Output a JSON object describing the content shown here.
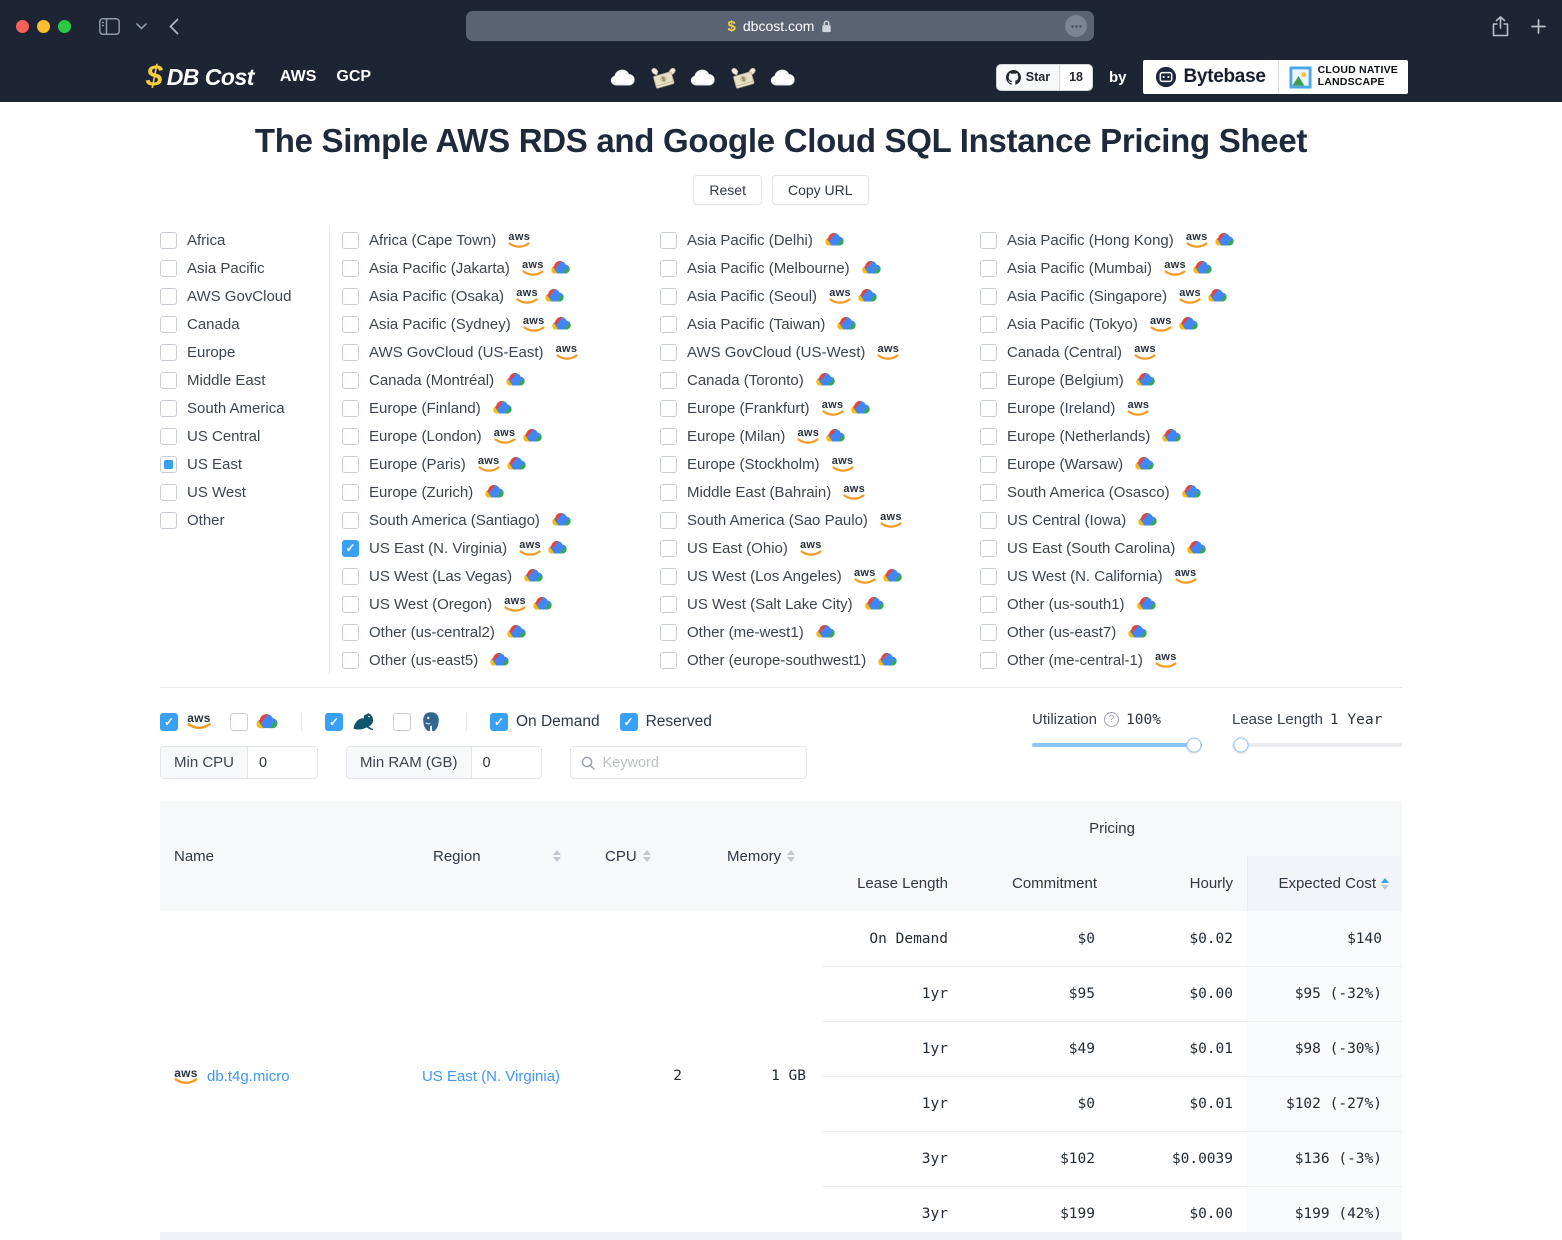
{
  "browser": {
    "url": "dbcost.com"
  },
  "site_header": {
    "logo_dollar": "$",
    "logo_text": "DB Cost",
    "nav": [
      {
        "label": "AWS"
      },
      {
        "label": "GCP"
      }
    ],
    "star_label": "Star",
    "star_count": "18",
    "by_label": "by",
    "bytebase_label": "Bytebase",
    "landscape_line1": "CLOUD NATIVE",
    "landscape_line2": "LANDSCAPE"
  },
  "page": {
    "title": "The Simple AWS RDS and Google Cloud SQL Instance Pricing Sheet",
    "reset_label": "Reset",
    "copy_url_label": "Copy URL"
  },
  "region_filter": {
    "groups": [
      {
        "label": "Africa",
        "state": "unchecked"
      },
      {
        "label": "Asia Pacific",
        "state": "unchecked"
      },
      {
        "label": "AWS GovCloud",
        "state": "unchecked"
      },
      {
        "label": "Canada",
        "state": "unchecked"
      },
      {
        "label": "Europe",
        "state": "unchecked"
      },
      {
        "label": "Middle East",
        "state": "unchecked"
      },
      {
        "label": "South America",
        "state": "unchecked"
      },
      {
        "label": "US Central",
        "state": "unchecked"
      },
      {
        "label": "US East",
        "state": "indeterminate"
      },
      {
        "label": "US West",
        "state": "unchecked"
      },
      {
        "label": "Other",
        "state": "unchecked"
      }
    ],
    "columns": [
      [
        {
          "label": "Africa (Cape Town)",
          "providers": [
            "aws"
          ],
          "checked": false
        },
        {
          "label": "Asia Pacific (Jakarta)",
          "providers": [
            "aws",
            "gcp"
          ],
          "checked": false
        },
        {
          "label": "Asia Pacific (Osaka)",
          "providers": [
            "aws",
            "gcp"
          ],
          "checked": false
        },
        {
          "label": "Asia Pacific (Sydney)",
          "providers": [
            "aws",
            "gcp"
          ],
          "checked": false
        },
        {
          "label": "AWS GovCloud (US-East)",
          "providers": [
            "aws"
          ],
          "checked": false
        },
        {
          "label": "Canada (Montréal)",
          "providers": [
            "gcp"
          ],
          "checked": false
        },
        {
          "label": "Europe (Finland)",
          "providers": [
            "gcp"
          ],
          "checked": false
        },
        {
          "label": "Europe (London)",
          "providers": [
            "aws",
            "gcp"
          ],
          "checked": false
        },
        {
          "label": "Europe (Paris)",
          "providers": [
            "aws",
            "gcp"
          ],
          "checked": false
        },
        {
          "label": "Europe (Zurich)",
          "providers": [
            "gcp"
          ],
          "checked": false
        },
        {
          "label": "South America (Santiago)",
          "providers": [
            "gcp"
          ],
          "checked": false
        },
        {
          "label": "US East (N. Virginia)",
          "providers": [
            "aws",
            "gcp"
          ],
          "checked": true
        },
        {
          "label": "US West (Las Vegas)",
          "providers": [
            "gcp"
          ],
          "checked": false
        },
        {
          "label": "US West (Oregon)",
          "providers": [
            "aws",
            "gcp"
          ],
          "checked": false
        },
        {
          "label": "Other (us-central2)",
          "providers": [
            "gcp"
          ],
          "checked": false
        },
        {
          "label": "Other (us-east5)",
          "providers": [
            "gcp"
          ],
          "checked": false
        }
      ],
      [
        {
          "label": "Asia Pacific (Delhi)",
          "providers": [
            "gcp"
          ],
          "checked": false
        },
        {
          "label": "Asia Pacific (Melbourne)",
          "providers": [
            "gcp"
          ],
          "checked": false
        },
        {
          "label": "Asia Pacific (Seoul)",
          "providers": [
            "aws",
            "gcp"
          ],
          "checked": false
        },
        {
          "label": "Asia Pacific (Taiwan)",
          "providers": [
            "gcp"
          ],
          "checked": false
        },
        {
          "label": "AWS GovCloud (US-West)",
          "providers": [
            "aws"
          ],
          "checked": false
        },
        {
          "label": "Canada (Toronto)",
          "providers": [
            "gcp"
          ],
          "checked": false
        },
        {
          "label": "Europe (Frankfurt)",
          "providers": [
            "aws",
            "gcp"
          ],
          "checked": false
        },
        {
          "label": "Europe (Milan)",
          "providers": [
            "aws",
            "gcp"
          ],
          "checked": false
        },
        {
          "label": "Europe (Stockholm)",
          "providers": [
            "aws"
          ],
          "checked": false
        },
        {
          "label": "Middle East (Bahrain)",
          "providers": [
            "aws"
          ],
          "checked": false
        },
        {
          "label": "South America (Sao Paulo)",
          "providers": [
            "aws"
          ],
          "checked": false
        },
        {
          "label": "US East (Ohio)",
          "providers": [
            "aws"
          ],
          "checked": false
        },
        {
          "label": "US West (Los Angeles)",
          "providers": [
            "aws",
            "gcp"
          ],
          "checked": false
        },
        {
          "label": "US West (Salt Lake City)",
          "providers": [
            "gcp"
          ],
          "checked": false
        },
        {
          "label": "Other (me-west1)",
          "providers": [
            "gcp"
          ],
          "checked": false
        },
        {
          "label": "Other (europe-southwest1)",
          "providers": [
            "gcp"
          ],
          "checked": false
        }
      ],
      [
        {
          "label": "Asia Pacific (Hong Kong)",
          "providers": [
            "aws",
            "gcp"
          ],
          "checked": false
        },
        {
          "label": "Asia Pacific (Mumbai)",
          "providers": [
            "aws",
            "gcp"
          ],
          "checked": false
        },
        {
          "label": "Asia Pacific (Singapore)",
          "providers": [
            "aws",
            "gcp"
          ],
          "checked": false
        },
        {
          "label": "Asia Pacific (Tokyo)",
          "providers": [
            "aws",
            "gcp"
          ],
          "checked": false
        },
        {
          "label": "Canada (Central)",
          "providers": [
            "aws"
          ],
          "checked": false
        },
        {
          "label": "Europe (Belgium)",
          "providers": [
            "gcp"
          ],
          "checked": false
        },
        {
          "label": "Europe (Ireland)",
          "providers": [
            "aws"
          ],
          "checked": false
        },
        {
          "label": "Europe (Netherlands)",
          "providers": [
            "gcp"
          ],
          "checked": false
        },
        {
          "label": "Europe (Warsaw)",
          "providers": [
            "gcp"
          ],
          "checked": false
        },
        {
          "label": "South America (Osasco)",
          "providers": [
            "gcp"
          ],
          "checked": false
        },
        {
          "label": "US Central (Iowa)",
          "providers": [
            "gcp"
          ],
          "checked": false
        },
        {
          "label": "US East (South Carolina)",
          "providers": [
            "gcp"
          ],
          "checked": false
        },
        {
          "label": "US West (N. California)",
          "providers": [
            "aws"
          ],
          "checked": false
        },
        {
          "label": "Other (us-south1)",
          "providers": [
            "gcp"
          ],
          "checked": false
        },
        {
          "label": "Other (us-east7)",
          "providers": [
            "gcp"
          ],
          "checked": false
        },
        {
          "label": "Other (me-central-1)",
          "providers": [
            "aws"
          ],
          "checked": false
        }
      ]
    ]
  },
  "filters": {
    "providers": [
      {
        "name": "aws",
        "checked": true
      },
      {
        "name": "gcp",
        "checked": false
      }
    ],
    "engines": [
      {
        "name": "mysql",
        "checked": true
      },
      {
        "name": "postgres",
        "checked": false
      }
    ],
    "charge_types": [
      {
        "label": "On Demand",
        "checked": true
      },
      {
        "label": "Reserved",
        "checked": true
      }
    ],
    "min_cpu_label": "Min CPU",
    "min_cpu_value": "0",
    "min_ram_label": "Min RAM (GB)",
    "min_ram_value": "0",
    "keyword_placeholder": "Keyword",
    "help_icon": "?",
    "utilization_label": "Utilization",
    "utilization_value": "100%",
    "utilization_percent": 95,
    "lease_label": "Lease Length",
    "lease_value": "1 Year",
    "lease_percent": 5
  },
  "table": {
    "headers": {
      "name": "Name",
      "region": "Region",
      "cpu": "CPU",
      "memory": "Memory",
      "pricing": "Pricing",
      "lease_length": "Lease Length",
      "commitment": "Commitment",
      "hourly": "Hourly",
      "expected_cost": "Expected Cost"
    },
    "instance": {
      "provider": "aws",
      "name": "db.t4g.micro",
      "region": "US East (N. Virginia)",
      "cpu": "2",
      "memory": "1 GB",
      "pricing_rows": [
        {
          "lease_length": "On Demand",
          "commitment": "$0",
          "hourly": "$0.02",
          "expected_cost": "$140"
        },
        {
          "lease_length": "1yr",
          "commitment": "$95",
          "hourly": "$0.00",
          "expected_cost": "$95 (-32%)"
        },
        {
          "lease_length": "1yr",
          "commitment": "$49",
          "hourly": "$0.01",
          "expected_cost": "$98 (-30%)"
        },
        {
          "lease_length": "1yr",
          "commitment": "$0",
          "hourly": "$0.01",
          "expected_cost": "$102 (-27%)"
        },
        {
          "lease_length": "3yr",
          "commitment": "$102",
          "hourly": "$0.0039",
          "expected_cost": "$136 (-3%)"
        },
        {
          "lease_length": "3yr",
          "commitment": "$199",
          "hourly": "$0.00",
          "expected_cost": "$199 (42%)"
        }
      ]
    }
  }
}
